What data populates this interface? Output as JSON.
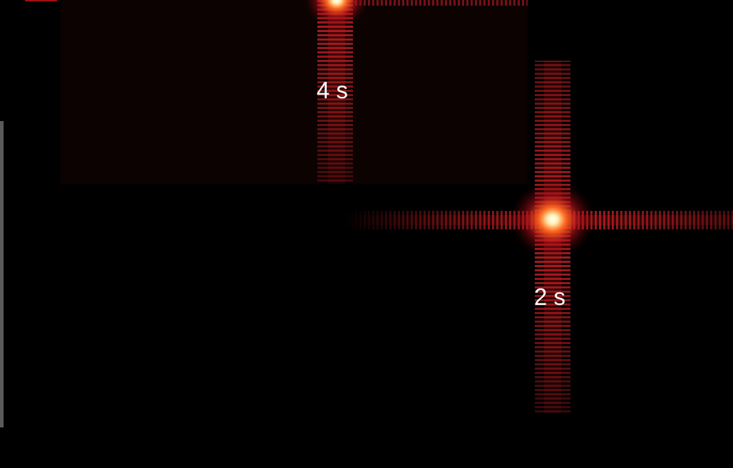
{
  "panels": [
    {
      "label": "4 s"
    },
    {
      "label": "2 s"
    }
  ]
}
